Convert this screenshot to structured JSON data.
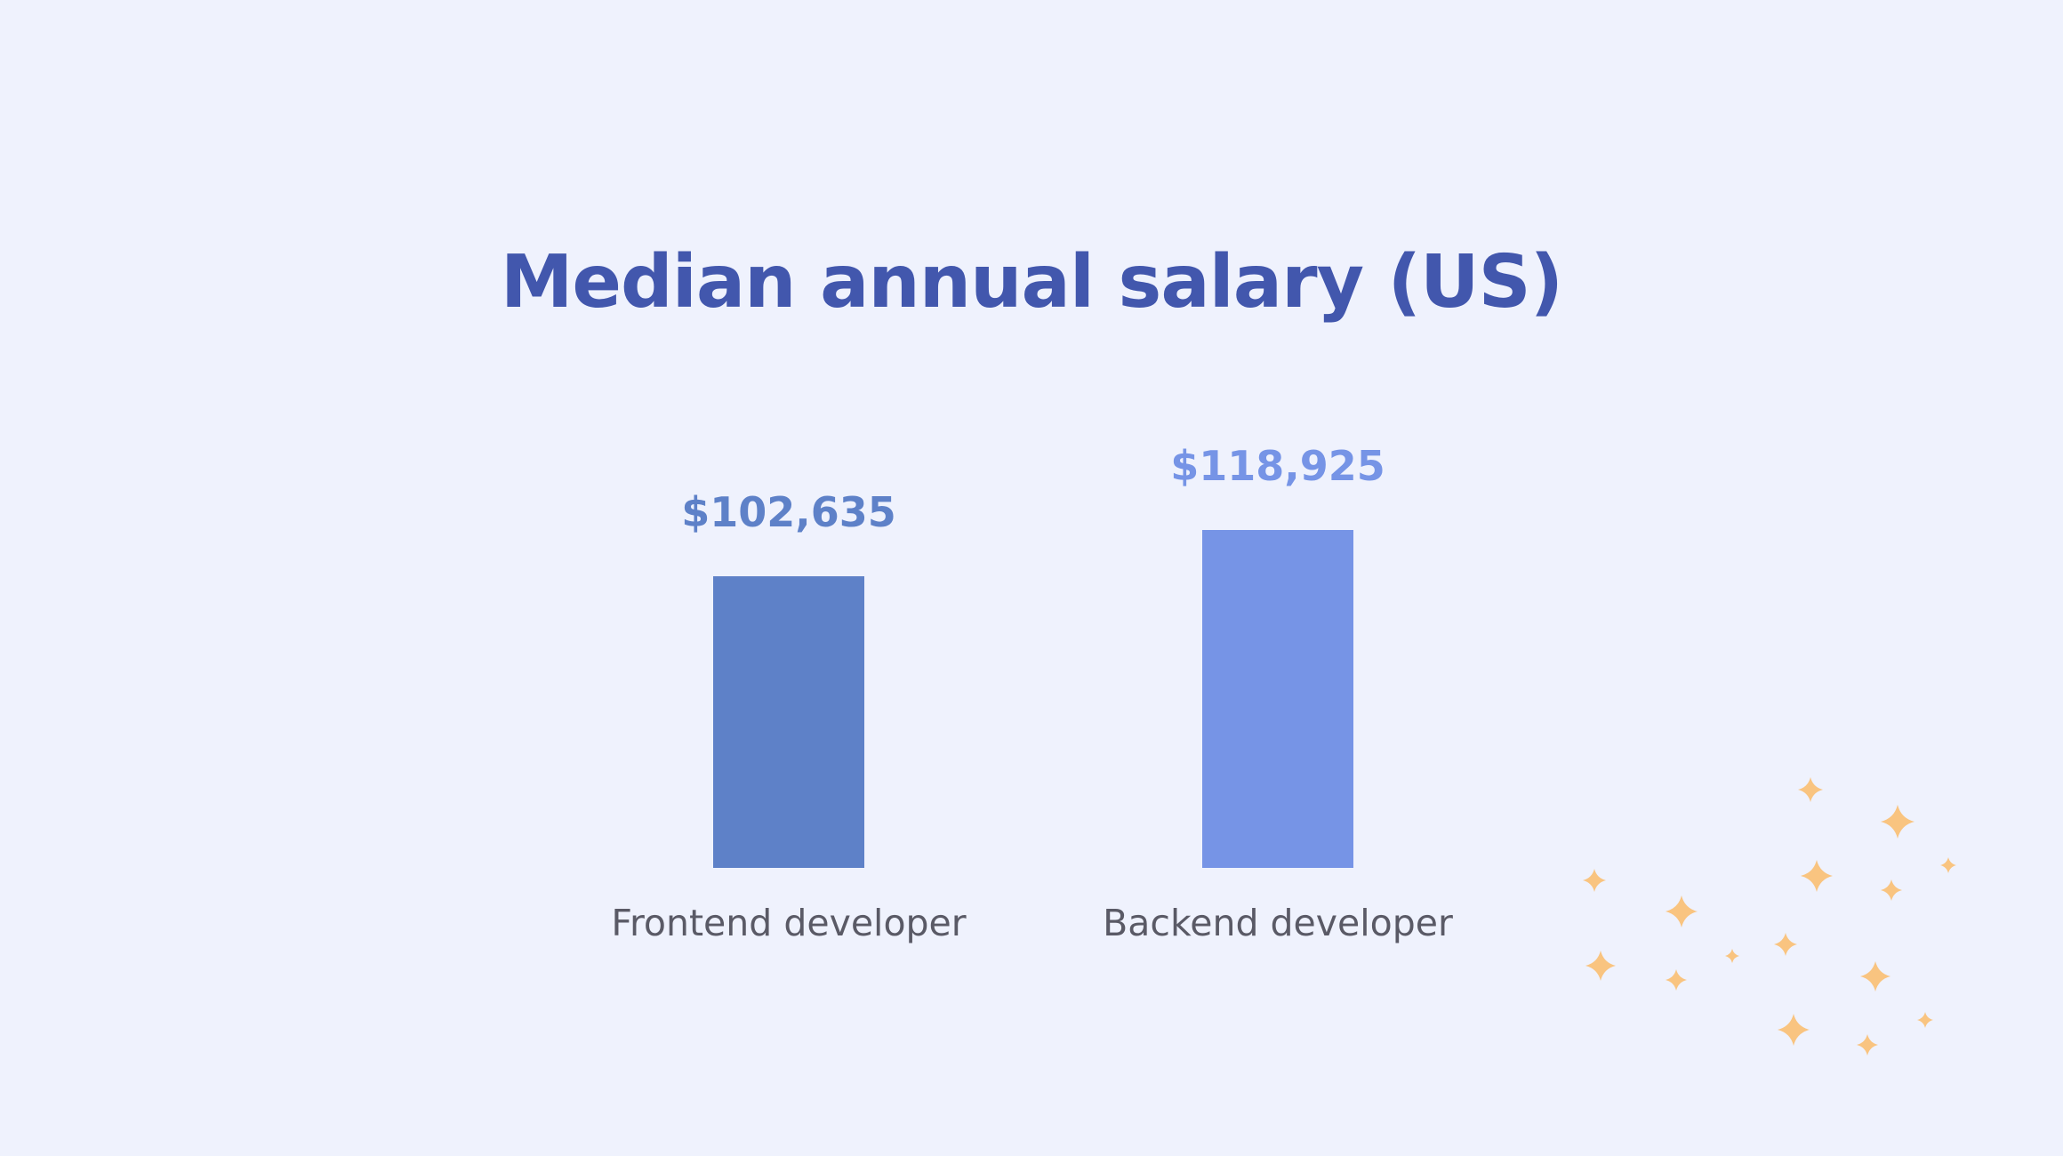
{
  "chart_data": {
    "type": "bar",
    "title": "Median annual salary (US)",
    "categories": [
      "Frontend developer",
      "Backend developer"
    ],
    "values": [
      102635,
      118925
    ],
    "value_labels": [
      "$102,635",
      "$118,925"
    ],
    "xlabel": "",
    "ylabel": "",
    "grid": false,
    "legend": "none"
  },
  "colors": {
    "background": "#eff2fd",
    "title": "#4257ad",
    "bars": [
      "#5e81c8",
      "#7694e6"
    ],
    "category_label": "#5a5a66",
    "decoration": "#f9c480"
  },
  "decoration": {
    "icon": "sparkle-icon"
  }
}
